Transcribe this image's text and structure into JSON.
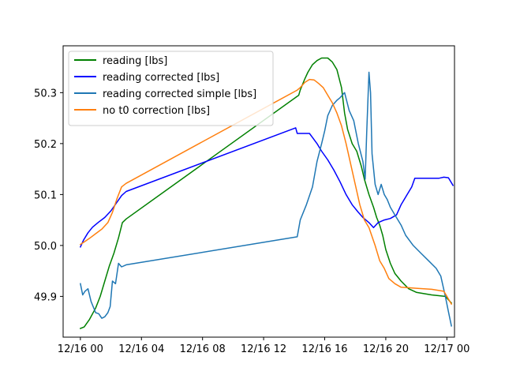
{
  "chart_data": {
    "type": "line",
    "title": "",
    "xlabel": "",
    "ylabel": "",
    "xlim_hours": [
      -1.13,
      24.5
    ],
    "ylim": [
      49.82,
      50.392
    ],
    "x_ticks": [
      {
        "hour": 0,
        "label": "12/16 00"
      },
      {
        "hour": 4,
        "label": "12/16 04"
      },
      {
        "hour": 8,
        "label": "12/16 08"
      },
      {
        "hour": 12,
        "label": "12/16 12"
      },
      {
        "hour": 16,
        "label": "12/16 16"
      },
      {
        "hour": 20,
        "label": "12/16 20"
      },
      {
        "hour": 24,
        "label": "12/17 00"
      }
    ],
    "y_ticks": [
      {
        "value": 49.9,
        "label": "49.9"
      },
      {
        "value": 50.0,
        "label": "50.0"
      },
      {
        "value": 50.1,
        "label": "50.1"
      },
      {
        "value": 50.2,
        "label": "50.2"
      },
      {
        "value": 50.3,
        "label": "50.3"
      }
    ],
    "legend": {
      "position": "top-left"
    },
    "grid": false,
    "series": [
      {
        "name": "reading [lbs]",
        "color": "#008000",
        "points": [
          [
            0,
            49.837
          ],
          [
            0.25,
            49.84
          ],
          [
            0.6,
            49.855
          ],
          [
            1.0,
            49.877
          ],
          [
            1.3,
            49.9
          ],
          [
            1.6,
            49.93
          ],
          [
            1.9,
            49.96
          ],
          [
            2.2,
            49.985
          ],
          [
            2.5,
            50.015
          ],
          [
            2.75,
            50.045
          ],
          [
            3.0,
            50.052
          ],
          [
            14.3,
            50.295
          ],
          [
            14.4,
            50.305
          ],
          [
            14.7,
            50.327
          ],
          [
            14.9,
            50.34
          ],
          [
            15.2,
            50.355
          ],
          [
            15.5,
            50.363
          ],
          [
            15.8,
            50.368
          ],
          [
            16.2,
            50.368
          ],
          [
            16.5,
            50.36
          ],
          [
            16.8,
            50.345
          ],
          [
            17.1,
            50.31
          ],
          [
            17.3,
            50.26
          ],
          [
            17.5,
            50.228
          ],
          [
            17.8,
            50.2
          ],
          [
            18.1,
            50.185
          ],
          [
            18.4,
            50.155
          ],
          [
            18.6,
            50.13
          ],
          [
            18.9,
            50.1
          ],
          [
            19.2,
            50.075
          ],
          [
            19.4,
            50.055
          ],
          [
            19.6,
            50.04
          ],
          [
            19.8,
            50.02
          ],
          [
            20.0,
            49.992
          ],
          [
            20.3,
            49.965
          ],
          [
            20.6,
            49.945
          ],
          [
            21.0,
            49.93
          ],
          [
            21.5,
            49.915
          ],
          [
            22.0,
            49.908
          ],
          [
            23.0,
            49.903
          ],
          [
            23.9,
            49.9
          ],
          [
            24.3,
            49.887
          ]
        ]
      },
      {
        "name": "reading corrected [lbs]",
        "color": "#0000ff",
        "points": [
          [
            0,
            49.997
          ],
          [
            0.2,
            50.01
          ],
          [
            0.5,
            50.025
          ],
          [
            0.8,
            50.036
          ],
          [
            1.2,
            50.046
          ],
          [
            1.6,
            50.055
          ],
          [
            2.0,
            50.068
          ],
          [
            2.4,
            50.085
          ],
          [
            2.7,
            50.098
          ],
          [
            3.0,
            50.106
          ],
          [
            14.1,
            50.231
          ],
          [
            14.2,
            50.22
          ],
          [
            15.0,
            50.22
          ],
          [
            15.2,
            50.212
          ],
          [
            15.5,
            50.2
          ],
          [
            15.8,
            50.185
          ],
          [
            16.2,
            50.168
          ],
          [
            16.6,
            50.148
          ],
          [
            17.0,
            50.125
          ],
          [
            17.4,
            50.1
          ],
          [
            17.8,
            50.08
          ],
          [
            18.2,
            50.065
          ],
          [
            18.5,
            50.055
          ],
          [
            18.9,
            50.045
          ],
          [
            19.2,
            50.035
          ],
          [
            19.5,
            50.045
          ],
          [
            19.9,
            50.05
          ],
          [
            20.3,
            50.053
          ],
          [
            20.7,
            50.06
          ],
          [
            21.0,
            50.08
          ],
          [
            21.4,
            50.1
          ],
          [
            21.7,
            50.115
          ],
          [
            21.9,
            50.132
          ],
          [
            23.5,
            50.132
          ],
          [
            23.8,
            50.134
          ],
          [
            24.1,
            50.133
          ],
          [
            24.4,
            50.118
          ]
        ]
      },
      {
        "name": "reading corrected simple [lbs]",
        "color": "#1f77b4",
        "points": [
          [
            0,
            49.925
          ],
          [
            0.15,
            49.903
          ],
          [
            0.3,
            49.91
          ],
          [
            0.5,
            49.915
          ],
          [
            0.7,
            49.89
          ],
          [
            1.0,
            49.868
          ],
          [
            1.2,
            49.866
          ],
          [
            1.4,
            49.857
          ],
          [
            1.6,
            49.86
          ],
          [
            1.8,
            49.868
          ],
          [
            1.95,
            49.88
          ],
          [
            2.1,
            49.93
          ],
          [
            2.3,
            49.925
          ],
          [
            2.5,
            49.965
          ],
          [
            2.7,
            49.958
          ],
          [
            3.0,
            49.962
          ],
          [
            14.2,
            50.017
          ],
          [
            14.4,
            50.05
          ],
          [
            14.8,
            50.08
          ],
          [
            15.2,
            50.115
          ],
          [
            15.5,
            50.165
          ],
          [
            15.8,
            50.2
          ],
          [
            16.0,
            50.225
          ],
          [
            16.2,
            50.255
          ],
          [
            16.5,
            50.275
          ],
          [
            16.8,
            50.285
          ],
          [
            17.0,
            50.29
          ],
          [
            17.3,
            50.3
          ],
          [
            17.6,
            50.265
          ],
          [
            17.9,
            50.245
          ],
          [
            18.2,
            50.2
          ],
          [
            18.5,
            50.165
          ],
          [
            18.65,
            50.13
          ],
          [
            18.75,
            50.22
          ],
          [
            18.9,
            50.34
          ],
          [
            19.0,
            50.3
          ],
          [
            19.1,
            50.18
          ],
          [
            19.3,
            50.12
          ],
          [
            19.5,
            50.1
          ],
          [
            19.7,
            50.12
          ],
          [
            19.9,
            50.1
          ],
          [
            20.1,
            50.09
          ],
          [
            20.3,
            50.075
          ],
          [
            20.6,
            50.06
          ],
          [
            21.0,
            50.04
          ],
          [
            21.3,
            50.02
          ],
          [
            21.8,
            50.0
          ],
          [
            22.3,
            49.985
          ],
          [
            22.8,
            49.97
          ],
          [
            23.3,
            49.955
          ],
          [
            23.6,
            49.94
          ],
          [
            23.9,
            49.9
          ],
          [
            24.1,
            49.87
          ],
          [
            24.3,
            49.842
          ]
        ]
      },
      {
        "name": "no t0 correction [lbs]",
        "color": "#ff7f0e",
        "points": [
          [
            0,
            50.002
          ],
          [
            0.3,
            50.008
          ],
          [
            0.6,
            50.014
          ],
          [
            1.0,
            50.023
          ],
          [
            1.4,
            50.032
          ],
          [
            1.8,
            50.045
          ],
          [
            2.1,
            50.065
          ],
          [
            2.4,
            50.092
          ],
          [
            2.7,
            50.115
          ],
          [
            3.0,
            50.122
          ],
          [
            14.2,
            50.305
          ],
          [
            14.4,
            50.31
          ],
          [
            14.7,
            50.32
          ],
          [
            15.0,
            50.326
          ],
          [
            15.3,
            50.325
          ],
          [
            15.6,
            50.318
          ],
          [
            15.9,
            50.31
          ],
          [
            16.2,
            50.295
          ],
          [
            16.5,
            50.28
          ],
          [
            16.8,
            50.26
          ],
          [
            17.1,
            50.235
          ],
          [
            17.4,
            50.2
          ],
          [
            17.7,
            50.16
          ],
          [
            18.0,
            50.12
          ],
          [
            18.3,
            50.08
          ],
          [
            18.6,
            50.05
          ],
          [
            18.9,
            50.035
          ],
          [
            19.3,
            50.0
          ],
          [
            19.6,
            49.97
          ],
          [
            19.9,
            49.955
          ],
          [
            20.2,
            49.935
          ],
          [
            20.6,
            49.925
          ],
          [
            21.0,
            49.918
          ],
          [
            21.5,
            49.917
          ],
          [
            22.0,
            49.916
          ],
          [
            23.0,
            49.914
          ],
          [
            23.8,
            49.91
          ],
          [
            24.3,
            49.885
          ]
        ]
      }
    ]
  }
}
